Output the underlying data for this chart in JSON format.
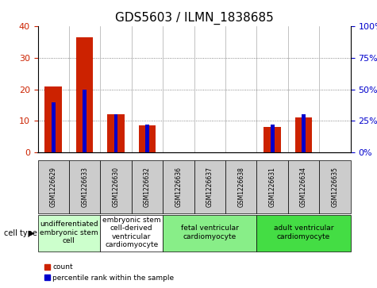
{
  "title": "GDS5603 / ILMN_1838685",
  "samples": [
    "GSM1226629",
    "GSM1226633",
    "GSM1226630",
    "GSM1226632",
    "GSM1226636",
    "GSM1226637",
    "GSM1226638",
    "GSM1226631",
    "GSM1226634",
    "GSM1226635"
  ],
  "counts": [
    21,
    36.5,
    12,
    8.5,
    0,
    0,
    0,
    8,
    11,
    0
  ],
  "percentiles": [
    40,
    50,
    30,
    22,
    0,
    0,
    0,
    22,
    30,
    0
  ],
  "ylim_left": [
    0,
    40
  ],
  "ylim_right": [
    0,
    100
  ],
  "yticks_left": [
    0,
    10,
    20,
    30,
    40
  ],
  "yticks_right": [
    0,
    25,
    50,
    75,
    100
  ],
  "cell_types": [
    {
      "label": "undifferentiated\nembryonic stem\ncell",
      "span": [
        0,
        2
      ],
      "color": "#ccffcc"
    },
    {
      "label": "embryonic stem\ncell-derived\nventricular\ncardiomyocyte",
      "span": [
        2,
        4
      ],
      "color": "#ffffff"
    },
    {
      "label": "fetal ventricular\ncardiomyocyte",
      "span": [
        4,
        7
      ],
      "color": "#88ee88"
    },
    {
      "label": "adult ventricular\ncardiomyocyte",
      "span": [
        7,
        10
      ],
      "color": "#44dd44"
    }
  ],
  "bar_color_red": "#cc2200",
  "bar_color_blue": "#0000cc",
  "bg_color": "#ffffff",
  "sample_box_color": "#cccccc",
  "grid_color": "#666666",
  "title_fontsize": 11,
  "label_fontsize": 7,
  "cell_type_fontsize": 6.5,
  "legend_fontsize": 6.5
}
